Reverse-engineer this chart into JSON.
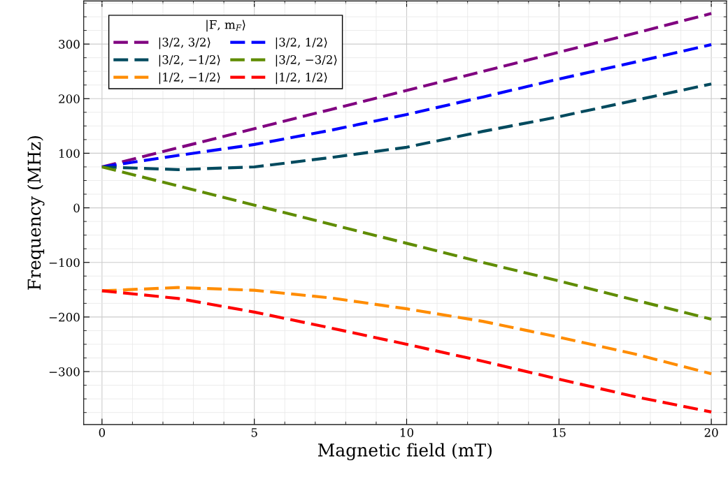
{
  "chart_data": {
    "type": "line",
    "xlabel": "Magnetic field (mT)",
    "ylabel": "Frequency (MHz)",
    "legend_title": "|F, m$_{F}$⟩",
    "legend": "top left",
    "grid": true,
    "line_style": "dashed",
    "marker": "none",
    "x": [
      0,
      2.5,
      5,
      7.5,
      10,
      12.5,
      15,
      17.5,
      20
    ],
    "xlim": [
      -0.6,
      20.5
    ],
    "xticks": [
      0,
      5,
      10,
      15,
      20
    ],
    "ylim": [
      -397,
      379
    ],
    "yticks": [
      {
        "value": -300,
        "label": "−300"
      },
      {
        "value": -200,
        "label": "−200"
      },
      {
        "value": -100,
        "label": "−100"
      },
      0,
      100,
      200,
      300
    ],
    "series": [
      {
        "name": "|3/2, 3/2⟩",
        "color": "#800080",
        "values": [
          75,
          110,
          145,
          180,
          215,
          250,
          285,
          320,
          356
        ]
      },
      {
        "name": "|3/2, 1/2⟩",
        "color": "#0000ff",
        "values": [
          75,
          96,
          116,
          142,
          171,
          203,
          236,
          267,
          299
        ]
      },
      {
        "name": "|3/2, −1/2⟩",
        "color": "#004a5e",
        "values": [
          75,
          70,
          75,
          92,
          111,
          140,
          167,
          197,
          227
        ]
      },
      {
        "name": "|3/2, −3/2⟩",
        "color": "#5f8c00",
        "values": [
          75,
          40,
          5,
          -30,
          -65,
          -100,
          -134,
          -169,
          -204
        ]
      },
      {
        "name": "|1/2, −1/2⟩",
        "color": "#ff8c00",
        "values": [
          -152,
          -146,
          -151,
          -165,
          -185,
          -208,
          -237,
          -268,
          -304
        ]
      },
      {
        "name": "|1/2, 1/2⟩",
        "color": "#ff0000",
        "values": [
          -152,
          -166,
          -191,
          -220,
          -250,
          -281,
          -314,
          -346,
          -374
        ]
      }
    ]
  }
}
